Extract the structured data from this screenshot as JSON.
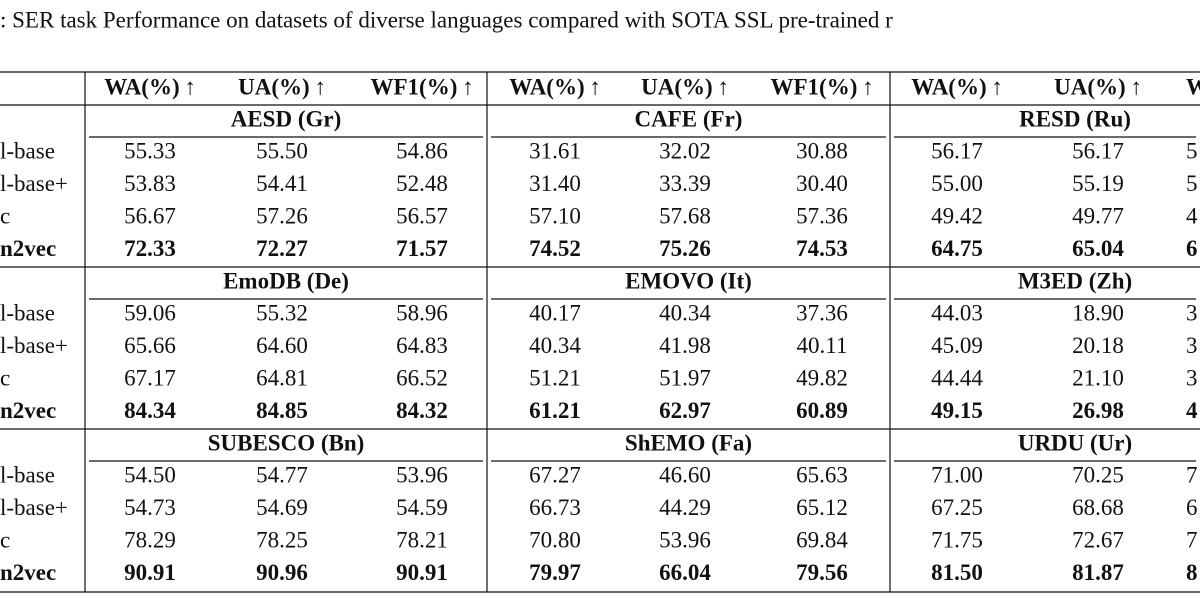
{
  "caption": ": SER task Performance on datasets of diverse languages compared with SOTA SSL pre-trained r",
  "table": {
    "header": [
      "WA(%) ↑",
      "UA(%) ↑",
      "WF1(%) ↑",
      "WA(%) ↑",
      "UA(%) ↑",
      "WF1(%) ↑",
      "WA(%) ↑",
      "UA(%) ↑",
      "WF"
    ],
    "blocks": [
      {
        "datasets": [
          "AESD (Gr)",
          "CAFE (Fr)",
          "RESD (Ru)"
        ],
        "rows": [
          [
            "l-base",
            "55.33",
            "55.50",
            "54.86",
            "31.61",
            "32.02",
            "30.88",
            "56.17",
            "56.17",
            "5"
          ],
          [
            "l-base+",
            "53.83",
            "54.41",
            "52.48",
            "31.40",
            "33.39",
            "30.40",
            "55.00",
            "55.19",
            "5"
          ],
          [
            "c",
            "56.67",
            "57.26",
            "56.57",
            "57.10",
            "57.68",
            "57.36",
            "49.42",
            "49.77",
            "4"
          ],
          [
            "n2vec",
            "72.33",
            "72.27",
            "71.57",
            "74.52",
            "75.26",
            "74.53",
            "64.75",
            "65.04",
            "6"
          ]
        ]
      },
      {
        "datasets": [
          "EmoDB (De)",
          "EMOVO (It)",
          "M3ED (Zh)"
        ],
        "rows": [
          [
            "l-base",
            "59.06",
            "55.32",
            "58.96",
            "40.17",
            "40.34",
            "37.36",
            "44.03",
            "18.90",
            "3"
          ],
          [
            "l-base+",
            "65.66",
            "64.60",
            "64.83",
            "40.34",
            "41.98",
            "40.11",
            "45.09",
            "20.18",
            "3"
          ],
          [
            "c",
            "67.17",
            "64.81",
            "66.52",
            "51.21",
            "51.97",
            "49.82",
            "44.44",
            "21.10",
            "3"
          ],
          [
            "n2vec",
            "84.34",
            "84.85",
            "84.32",
            "61.21",
            "62.97",
            "60.89",
            "49.15",
            "26.98",
            "4"
          ]
        ]
      },
      {
        "datasets": [
          "SUBESCO (Bn)",
          "ShEMO (Fa)",
          "URDU (Ur)"
        ],
        "rows": [
          [
            "l-base",
            "54.50",
            "54.77",
            "53.96",
            "67.27",
            "46.60",
            "65.63",
            "71.00",
            "70.25",
            "7"
          ],
          [
            "l-base+",
            "54.73",
            "54.69",
            "54.59",
            "66.73",
            "44.29",
            "65.12",
            "67.25",
            "68.68",
            "6"
          ],
          [
            "c",
            "78.29",
            "78.25",
            "78.21",
            "70.80",
            "53.96",
            "69.84",
            "71.75",
            "72.67",
            "7"
          ],
          [
            "n2vec",
            "90.91",
            "90.96",
            "90.91",
            "79.97",
            "66.04",
            "79.56",
            "81.50",
            "81.87",
            "8"
          ]
        ]
      }
    ]
  }
}
